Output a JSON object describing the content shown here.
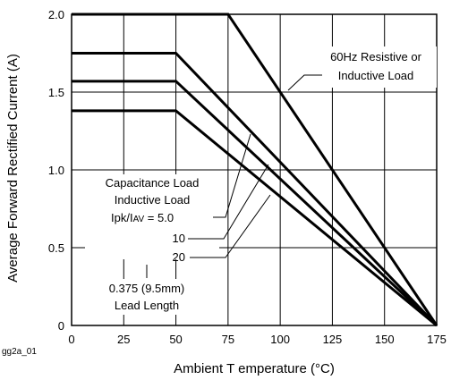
{
  "chart_data": {
    "type": "line",
    "xlabel": "Ambient T emperature (°C)",
    "ylabel": "Average Forward Rectified Current (A)",
    "xlim": [
      0,
      175
    ],
    "ylim": [
      0,
      2.0
    ],
    "x_ticks": [
      "0",
      "25",
      "50",
      "75",
      "100",
      "125",
      "150",
      "175"
    ],
    "y_ticks": [
      "0",
      "0.5",
      "1.0",
      "1.5",
      "2.0"
    ],
    "x_tick_values": [
      0,
      25,
      50,
      75,
      100,
      125,
      150,
      175
    ],
    "y_tick_values": [
      0,
      0.5,
      1.0,
      1.5,
      2.0
    ],
    "grid": true,
    "series": [
      {
        "name": "60Hz Resistive or Inductive Load",
        "x": [
          0,
          75,
          175
        ],
        "y": [
          2.0,
          2.0,
          0
        ]
      },
      {
        "name": "Ipk/IAV = 5.0",
        "x": [
          0,
          50,
          175
        ],
        "y": [
          1.75,
          1.75,
          0
        ]
      },
      {
        "name": "10",
        "x": [
          0,
          50,
          175
        ],
        "y": [
          1.57,
          1.57,
          0
        ]
      },
      {
        "name": "20",
        "x": [
          0,
          50,
          175
        ],
        "y": [
          1.38,
          1.38,
          0
        ]
      }
    ],
    "annotations": {
      "load_line1": "60Hz Resistive or",
      "load_line2": "Inductive Load",
      "cap_line1": "Capacitance Load",
      "cap_line2": "Inductive Load",
      "ratio_label": "Ipk/I",
      "ratio_sub": "AV",
      "ratio_value": " = 5.0",
      "ratio_10": "10",
      "ratio_20": "20",
      "lead_line1": "0.375  (9.5mm)",
      "lead_line2": "Lead Length"
    },
    "figure_code": "gg2a_01"
  }
}
